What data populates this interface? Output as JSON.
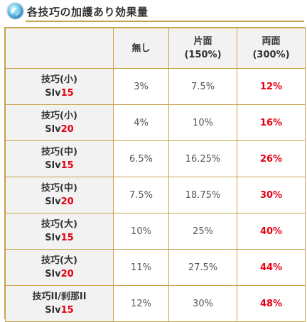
{
  "header": {
    "title": "各技巧の加護あり効果量",
    "icon": "blue-orb-icon",
    "accent_color": "#c9a24a"
  },
  "table": {
    "columns": [
      {
        "line1": "",
        "line2": ""
      },
      {
        "line1": "無し",
        "line2": ""
      },
      {
        "line1": "片面",
        "line2": "(150%)"
      },
      {
        "line1": "両面",
        "line2": "(300%)"
      }
    ],
    "rows": [
      {
        "skill": "技巧(小)",
        "slv_label": "Slv",
        "slv_value": "15",
        "none": "3%",
        "one_side": "7.5%",
        "both_sides": "12%"
      },
      {
        "skill": "技巧(小)",
        "slv_label": "Slv",
        "slv_value": "20",
        "none": "4%",
        "one_side": "10%",
        "both_sides": "16%"
      },
      {
        "skill": "技巧(中)",
        "slv_label": "Slv",
        "slv_value": "15",
        "none": "6.5%",
        "one_side": "16.25%",
        "both_sides": "26%"
      },
      {
        "skill": "技巧(中)",
        "slv_label": "Slv",
        "slv_value": "20",
        "none": "7.5%",
        "one_side": "18.75%",
        "both_sides": "30%"
      },
      {
        "skill": "技巧(大)",
        "slv_label": "Slv",
        "slv_value": "15",
        "none": "10%",
        "one_side": "25%",
        "both_sides": "40%"
      },
      {
        "skill": "技巧(大)",
        "slv_label": "Slv",
        "slv_value": "20",
        "none": "11%",
        "one_side": "27.5%",
        "both_sides": "44%"
      },
      {
        "skill": "技巧II/刹那II",
        "slv_label": "Slv",
        "slv_value": "15",
        "none": "12%",
        "one_side": "30%",
        "both_sides": "48%"
      }
    ],
    "highlight_color": "#e60012",
    "header_bg": "#f2f2f2"
  }
}
